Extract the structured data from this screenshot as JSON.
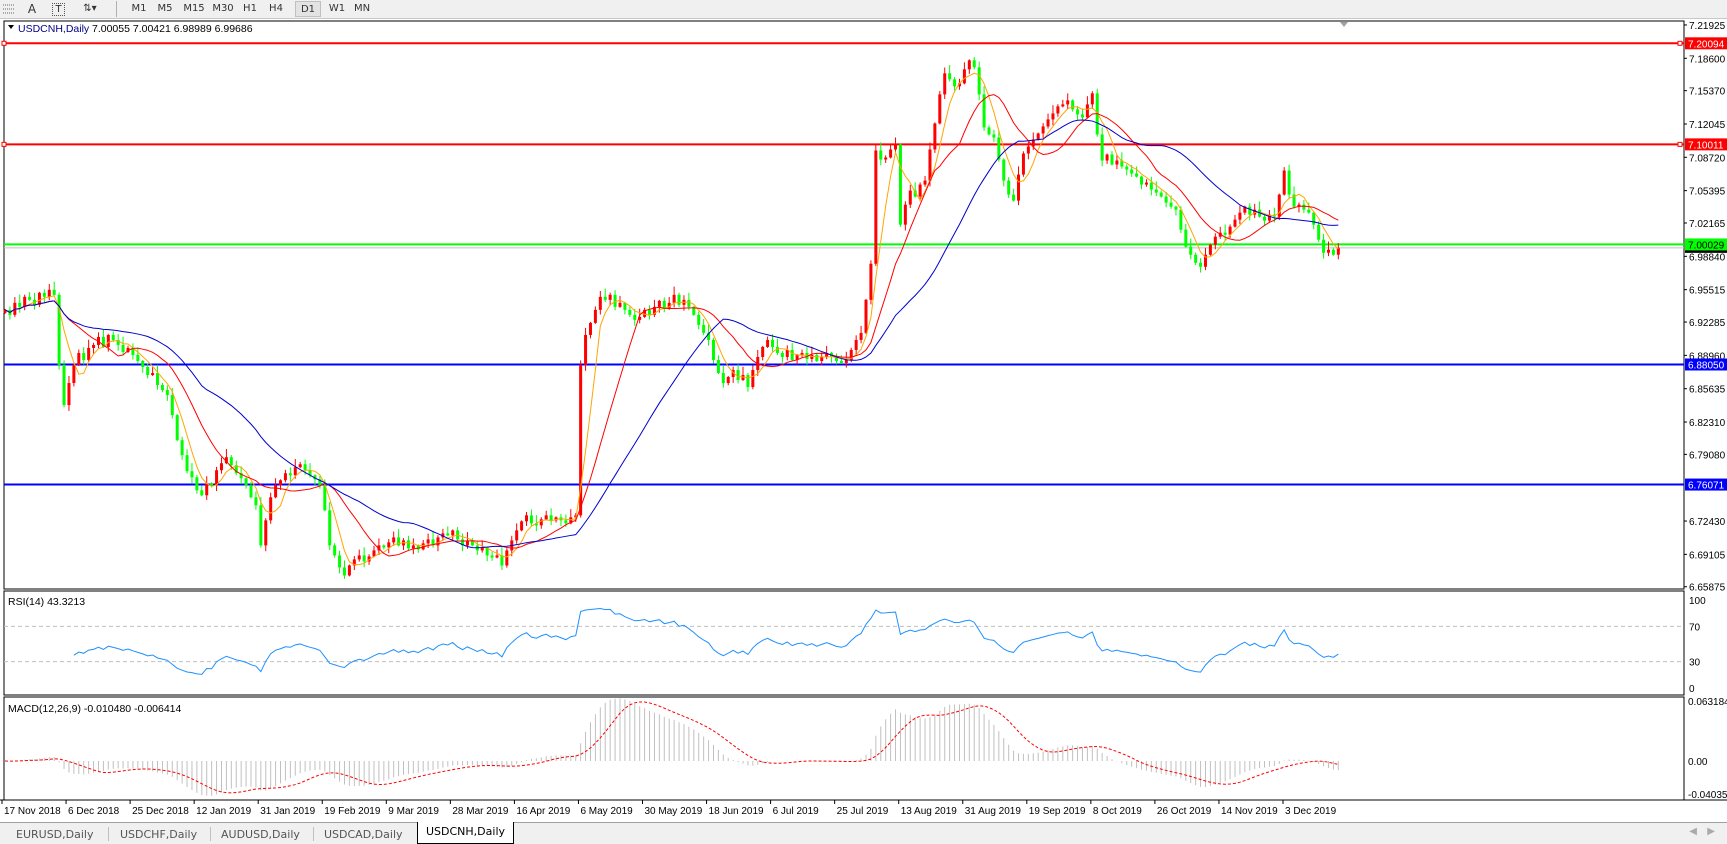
{
  "toolbar": {
    "icons": [
      "crosshair-grid-icon",
      "text-icon",
      "text-label-icon",
      "arrows-icon"
    ],
    "text_icon_label": "A",
    "label_icon_label": "T",
    "timeframes": [
      "M1",
      "M5",
      "M15",
      "M30",
      "H1",
      "H4",
      "D1",
      "W1",
      "MN"
    ],
    "active_timeframe": "D1"
  },
  "chart_header": {
    "symbol": "USDCNH,Daily",
    "ohlc": "7.00055 7.00421 6.98989 6.99686"
  },
  "chart_data": [
    {
      "type": "candlestick",
      "title": "USDCNH,Daily",
      "bullish_color": "#ff0000",
      "bearish_color": "#00ff00",
      "ylim": [
        6.6565,
        7.2232
      ],
      "grid": false,
      "y_ticks": [
        "7.21925",
        "7.18600",
        "7.15370",
        "7.12045",
        "7.08720",
        "7.05395",
        "7.02165",
        "6.98840",
        "6.95515",
        "6.92285",
        "6.88960",
        "6.85635",
        "6.82310",
        "6.79080",
        "6.72430",
        "6.69105",
        "6.65875"
      ],
      "x_ticks": [
        "17 Nov 2018",
        "6 Dec 2018",
        "25 Dec 2018",
        "12 Jan 2019",
        "31 Jan 2019",
        "19 Feb 2019",
        "9 Mar 2019",
        "28 Mar 2019",
        "16 Apr 2019",
        "6 May 2019",
        "30 May 2019",
        "18 Jun 2019",
        "6 Jul 2019",
        "25 Jul 2019",
        "13 Aug 2019",
        "31 Aug 2019",
        "19 Sep 2019",
        "8 Oct 2019",
        "26 Oct 2019",
        "14 Nov 2019",
        "3 Dec 2019"
      ],
      "moving_average_colors": [
        "#ffa500",
        "#ff0000",
        "#0000cd"
      ],
      "horizontal_lines": [
        {
          "value": "7.20094",
          "color": "#ff0000"
        },
        {
          "value": "7.10011",
          "color": "#ff0000"
        },
        {
          "value": "7.00029",
          "color": "#00ff00"
        },
        {
          "value": "6.88050",
          "color": "#0000ff"
        },
        {
          "value": "6.76071",
          "color": "#0000ff"
        }
      ],
      "bid_line": {
        "value": "6.99686",
        "color": "#c0c0c0"
      },
      "closes": [
        6.935,
        6.93,
        6.942,
        6.938,
        6.948,
        6.945,
        6.94,
        6.952,
        6.948,
        6.955,
        6.95,
        6.88,
        6.84,
        6.862,
        6.88,
        6.892,
        6.885,
        6.897,
        6.9,
        6.908,
        6.898,
        6.91,
        6.905,
        6.9,
        6.893,
        6.897,
        6.89,
        6.884,
        6.878,
        6.87,
        6.872,
        6.86,
        6.855,
        6.85,
        6.83,
        6.805,
        6.79,
        6.774,
        6.768,
        6.755,
        6.75,
        6.762,
        6.76,
        6.775,
        6.782,
        6.788,
        6.78,
        6.772,
        6.767,
        6.76,
        6.748,
        6.74,
        6.7,
        6.725,
        6.748,
        6.76,
        6.765,
        6.772,
        6.77,
        6.778,
        6.781,
        6.775,
        6.77,
        6.766,
        6.76,
        6.735,
        6.7,
        6.69,
        6.678,
        6.67,
        6.68,
        6.686,
        6.69,
        6.684,
        6.689,
        6.695,
        6.7,
        6.698,
        6.703,
        6.708,
        6.7,
        6.705,
        6.697,
        6.7,
        6.696,
        6.702,
        6.706,
        6.7,
        6.708,
        6.712,
        6.71,
        6.715,
        6.706,
        6.7,
        6.705,
        6.7,
        6.695,
        6.698,
        6.69,
        6.688,
        6.69,
        6.68,
        6.695,
        6.705,
        6.715,
        6.724,
        6.73,
        6.722,
        6.72,
        6.726,
        6.73,
        6.725,
        6.728,
        6.725,
        6.722,
        6.728,
        6.73,
        6.88,
        6.91,
        6.922,
        6.935,
        6.948,
        6.945,
        6.95,
        6.938,
        6.942,
        6.935,
        6.93,
        6.925,
        6.928,
        6.935,
        6.93,
        6.938,
        6.944,
        6.936,
        6.942,
        6.95,
        6.94,
        6.945,
        6.938,
        6.93,
        6.92,
        6.912,
        6.905,
        6.885,
        6.872,
        6.862,
        6.868,
        6.875,
        6.865,
        6.87,
        6.858,
        6.875,
        6.888,
        6.898,
        6.905,
        6.898,
        6.892,
        6.888,
        6.895,
        6.885,
        6.89,
        6.892,
        6.886,
        6.89,
        6.884,
        6.888,
        6.892,
        6.888,
        6.884,
        6.882,
        6.885,
        6.895,
        6.905,
        6.912,
        6.945,
        6.981,
        7.094,
        7.085,
        7.087,
        7.095,
        7.1,
        7.02,
        7.04,
        7.054,
        7.048,
        7.06,
        7.064,
        7.095,
        7.121,
        7.15,
        7.171,
        7.165,
        7.158,
        7.161,
        7.175,
        7.184,
        7.177,
        7.15,
        7.117,
        7.11,
        7.107,
        7.085,
        7.064,
        7.05,
        7.044,
        7.07,
        7.091,
        7.098,
        7.105,
        7.111,
        7.118,
        7.125,
        7.131,
        7.138,
        7.14,
        7.144,
        7.135,
        7.13,
        7.127,
        7.14,
        7.151,
        7.11,
        7.084,
        7.09,
        7.08,
        7.084,
        7.078,
        7.075,
        7.071,
        7.068,
        7.06,
        7.062,
        7.055,
        7.052,
        7.048,
        7.042,
        7.038,
        7.035,
        7.015,
        6.998,
        6.99,
        6.982,
        6.978,
        6.99,
        7.0,
        7.008,
        7.012,
        7.01,
        7.018,
        7.025,
        7.032,
        7.038,
        7.03,
        7.035,
        7.028,
        7.024,
        7.03,
        7.028,
        7.05,
        7.074,
        7.05,
        7.038,
        7.04,
        7.035,
        7.032,
        7.02,
        7.005,
        6.992,
        6.995,
        6.99,
        6.997
      ]
    },
    {
      "type": "line",
      "title": "RSI(14) 43.3213",
      "ylim": [
        0,
        100
      ],
      "y_ticks": [
        "100",
        "70",
        "30",
        "0"
      ],
      "levels": [
        70,
        30
      ],
      "color": "#1e90ff"
    },
    {
      "type": "bar",
      "title": "MACD(12,26,9) -0.010480 -0.006414",
      "ylim": [
        -0.040355,
        0.063184
      ],
      "y_ticks": [
        "0.063184",
        "0.00",
        "-0.040355"
      ],
      "histogram_color": "#c0c0c0",
      "signal_color": "#ff0000"
    }
  ],
  "tabs": [
    {
      "label": "EURUSD,Daily",
      "active": false
    },
    {
      "label": "USDCHF,Daily",
      "active": false
    },
    {
      "label": "AUDUSD,Daily",
      "active": false
    },
    {
      "label": "USDCAD,Daily",
      "active": false
    },
    {
      "label": "USDCNH,Daily",
      "active": true
    }
  ]
}
